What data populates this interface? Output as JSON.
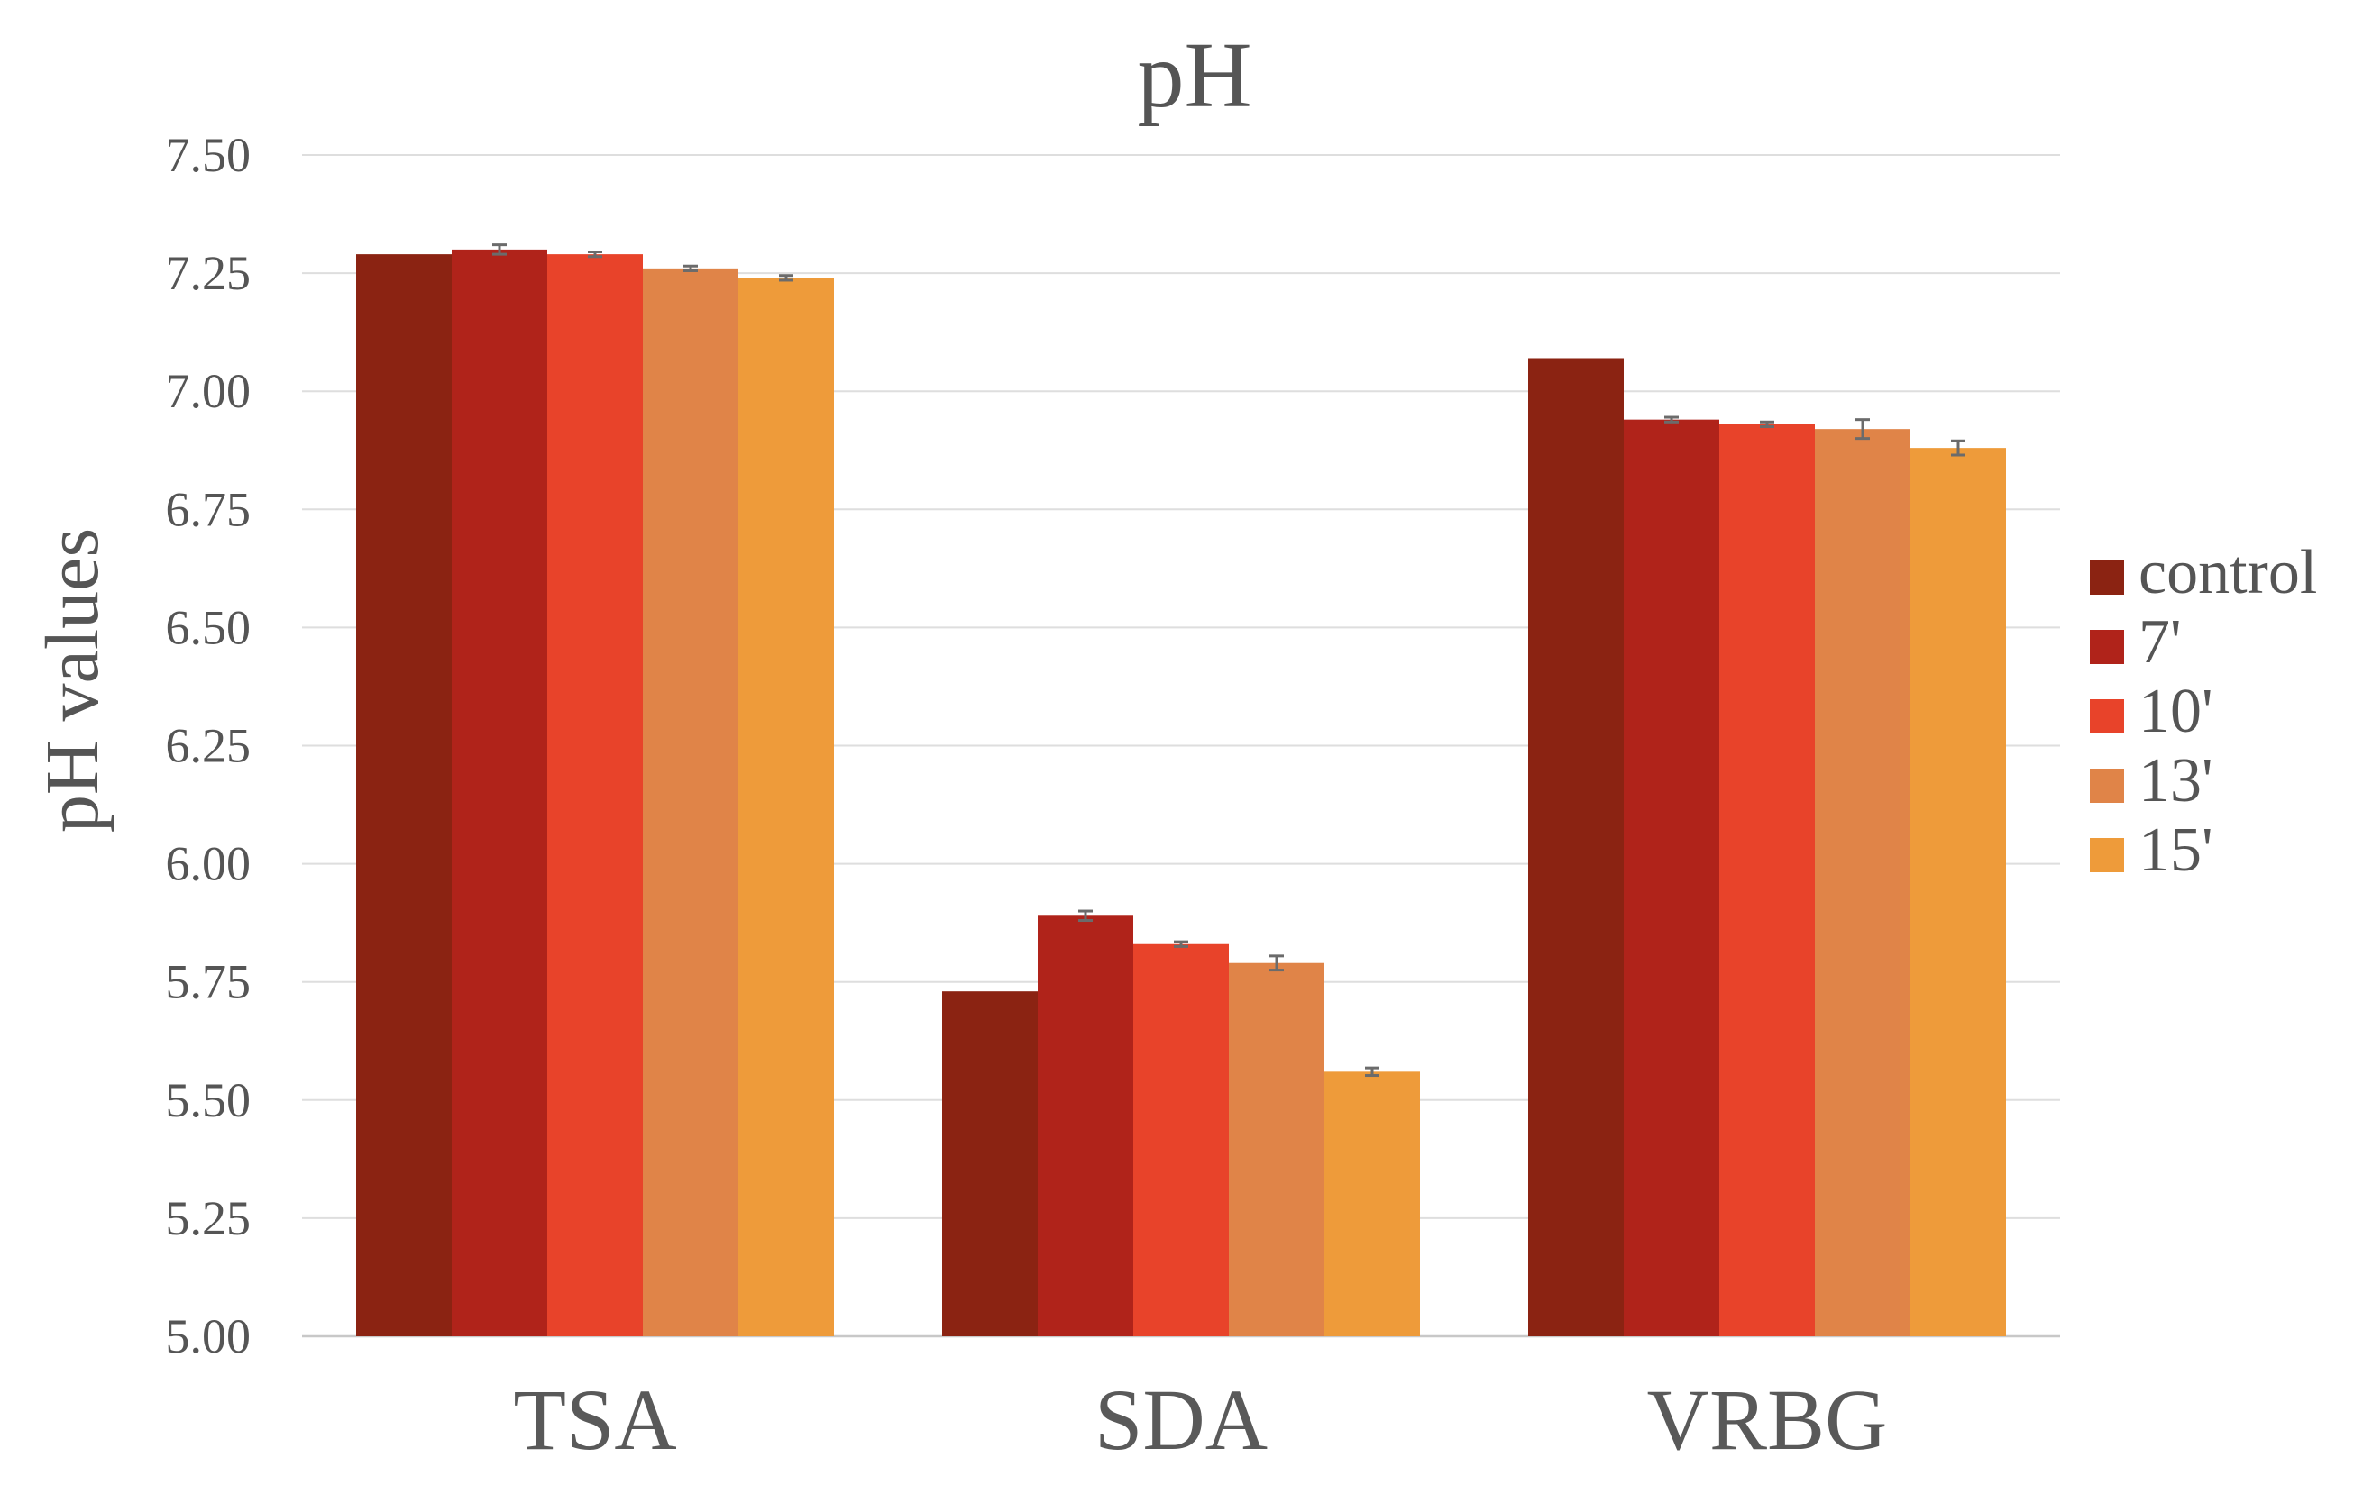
{
  "chart_data": {
    "type": "bar",
    "title": "pH",
    "xlabel": "",
    "ylabel": "pH values",
    "ylim": [
      5.0,
      7.5
    ],
    "yticks": [
      "5.00",
      "5.25",
      "5.50",
      "5.75",
      "6.00",
      "6.25",
      "6.50",
      "6.75",
      "7.00",
      "7.25",
      "7.50"
    ],
    "grid": true,
    "legend_position": "right",
    "categories": [
      "TSA",
      "SDA",
      "VRBG"
    ],
    "series": [
      {
        "name": "control",
        "color": "#8B2312",
        "values": [
          7.29,
          5.73,
          7.07
        ],
        "errors": [
          0.0,
          0.0,
          0.0
        ]
      },
      {
        "name": "7'",
        "color": "#B0231A",
        "values": [
          7.3,
          5.89,
          6.94
        ],
        "errors": [
          0.01,
          0.01,
          0.005
        ]
      },
      {
        "name": "10'",
        "color": "#E8432A",
        "values": [
          7.29,
          5.83,
          6.93
        ],
        "errors": [
          0.005,
          0.005,
          0.005
        ]
      },
      {
        "name": "13'",
        "color": "#E08448",
        "values": [
          7.26,
          5.79,
          6.92
        ],
        "errors": [
          0.005,
          0.015,
          0.02
        ]
      },
      {
        "name": "15'",
        "color": "#EE9B3A",
        "values": [
          7.24,
          5.56,
          6.88
        ],
        "errors": [
          0.005,
          0.008,
          0.015
        ]
      }
    ]
  }
}
